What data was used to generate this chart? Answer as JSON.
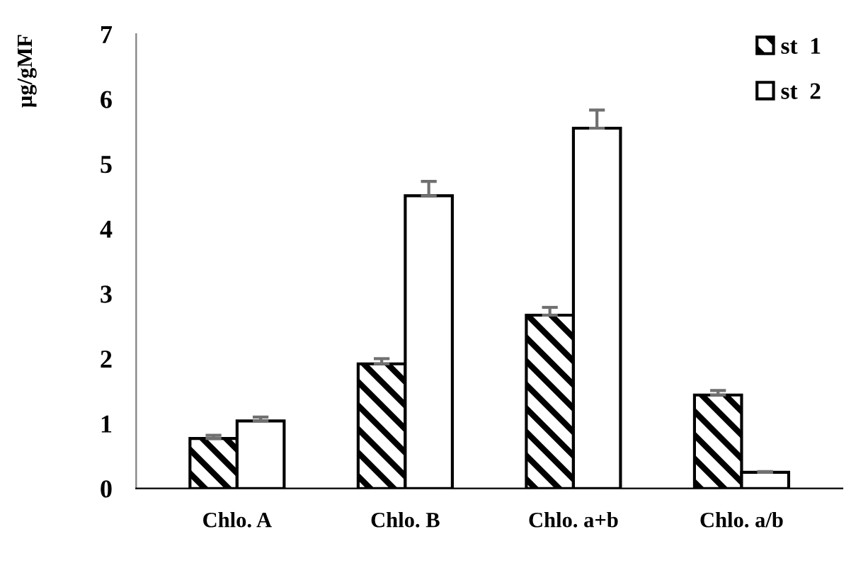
{
  "chart_data": {
    "type": "bar",
    "ylabel": "µg/gMF",
    "categories": [
      "Chlo. A",
      "Chlo. B",
      "Chlo. a+b",
      "Chlo. a/b"
    ],
    "series": [
      {
        "name": "st  1",
        "color": "#000000",
        "values": [
          0.77,
          1.92,
          2.67,
          1.44
        ],
        "errors": [
          [
            0.77,
            0.82
          ],
          [
            1.92,
            2.0
          ],
          [
            2.67,
            2.79
          ],
          [
            1.44,
            1.51
          ]
        ]
      },
      {
        "name": "st  2",
        "color": "#ffffff",
        "values": [
          1.04,
          4.51,
          5.55,
          0.25
        ],
        "errors": [
          [
            1.04,
            1.1
          ],
          [
            4.51,
            4.73
          ],
          [
            5.55,
            5.83
          ],
          [
            0.25,
            0.26
          ]
        ]
      }
    ],
    "ylim": [
      0,
      7
    ],
    "yticks": [
      0,
      1,
      2,
      3,
      4,
      5,
      6,
      7
    ],
    "grid": false,
    "legend": "top right"
  }
}
